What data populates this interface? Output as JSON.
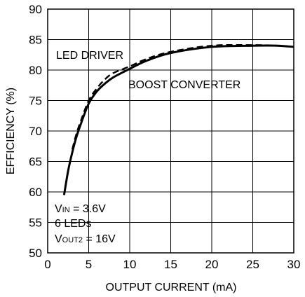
{
  "chart_data": {
    "type": "line",
    "title": "",
    "xlabel": "OUTPUT CURRENT (mA)",
    "ylabel": "EFFICIENCY (%)",
    "xlim": [
      0,
      30
    ],
    "ylim": [
      50,
      90
    ],
    "xticks": [
      "0",
      "5",
      "10",
      "15",
      "20",
      "25",
      "30"
    ],
    "yticks": [
      "50",
      "55",
      "60",
      "65",
      "70",
      "75",
      "80",
      "85",
      "90"
    ],
    "grid": true,
    "series": [
      {
        "name": "LED DRIVER",
        "style": "solid",
        "x": [
          2,
          2.5,
          3,
          3.5,
          4,
          5,
          6,
          7,
          8,
          10,
          12,
          15,
          20,
          25,
          28,
          30
        ],
        "y": [
          59.5,
          63.5,
          66.5,
          69,
          71,
          74.5,
          76.5,
          77.8,
          78.8,
          80.2,
          81.5,
          82.8,
          83.8,
          84,
          84,
          83.8
        ]
      },
      {
        "name": "BOOST CONVERTER",
        "style": "dashed",
        "x": [
          3,
          3.5,
          4,
          5,
          6,
          7,
          8,
          10,
          12,
          15,
          20,
          25,
          28,
          30
        ],
        "y": [
          67,
          69.5,
          71.5,
          75,
          77,
          78.5,
          79.5,
          80.6,
          81.8,
          83,
          84,
          84.1,
          84,
          83.8
        ]
      }
    ],
    "annotations": {
      "led_driver": "LED DRIVER",
      "boost_converter": "BOOST CONVERTER",
      "vin_main": "V",
      "vin_sub": "IN",
      "vin_rest": " = 3.6V",
      "leds": "6 LEDs",
      "vout_main": "V",
      "vout_sub": "OUT2",
      "vout_rest": " = 16V"
    }
  },
  "colors": {
    "line": "#000000",
    "grid": "#000000",
    "background": "#ffffff"
  }
}
